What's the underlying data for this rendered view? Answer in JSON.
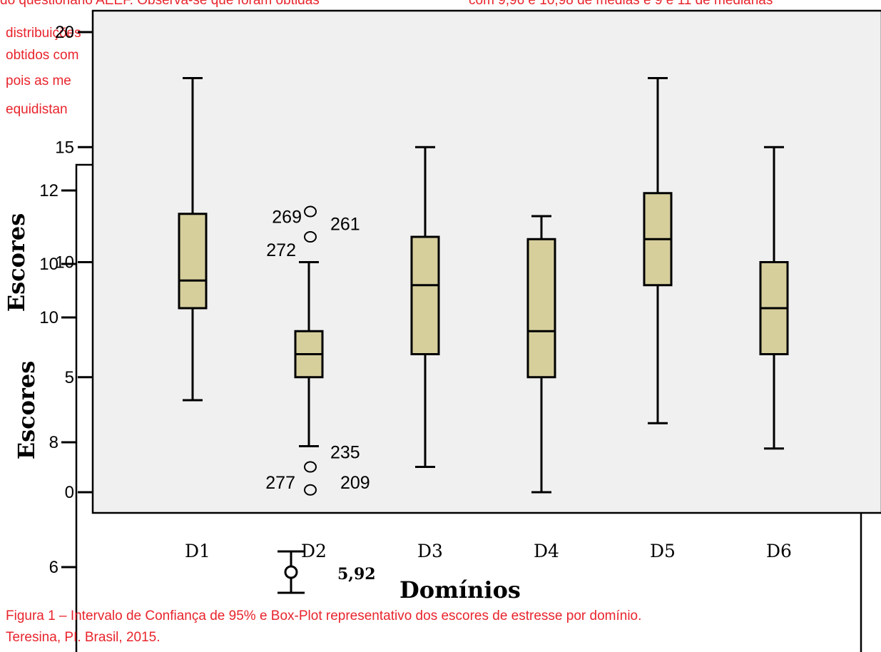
{
  "body_text": {
    "line0_left": "do questionário AEEF. Observa-se que foram obtidas",
    "line0_right": "com 9,96 e 10,98 de médias e 9 e 11 de medianas",
    "line1": "distribuições",
    "line2": "obtidos com",
    "line3": "pois as me",
    "line4": "equidistan"
  },
  "caption": {
    "line1": "Figura 1 – Intervalo de Confiança de 95% e Box-Plot representativo dos escores de estresse por domínio.",
    "line2": "Teresina, PI. Brasil, 2015."
  },
  "colors": {
    "text_red": "#e8242c",
    "box_fill": "#d6cf9c",
    "plot_bg": "#f0f0f0"
  },
  "chart_data": [
    {
      "type": "box",
      "ylabel": "Escores",
      "xlabel": "Domínios",
      "ylim": [
        0,
        20
      ],
      "y_ticks": [
        "0",
        "5",
        "10",
        "15",
        "20"
      ],
      "categories": [
        "D1",
        "D2",
        "D3",
        "D4",
        "D5",
        "D6"
      ],
      "boxes": [
        {
          "name": "D1",
          "whisker_low": 4,
          "q1": 8,
          "median": 9.2,
          "q3": 12.1,
          "whisker_high": 18
        },
        {
          "name": "D2",
          "whisker_low": 2,
          "q1": 5,
          "median": 6,
          "q3": 7,
          "whisker_high": 10
        },
        {
          "name": "D3",
          "whisker_low": 1.1,
          "q1": 6,
          "median": 9,
          "q3": 11.1,
          "whisker_high": 15
        },
        {
          "name": "D4",
          "whisker_low": 0,
          "q1": 5,
          "median": 7,
          "q3": 11,
          "whisker_high": 12
        },
        {
          "name": "D5",
          "whisker_low": 3,
          "q1": 9,
          "median": 11,
          "q3": 13,
          "whisker_high": 18
        },
        {
          "name": "D6",
          "whisker_low": 1.9,
          "q1": 6,
          "median": 8,
          "q3": 10,
          "whisker_high": 15
        }
      ],
      "outliers": [
        {
          "category": "D2",
          "value": 12.2,
          "label": "269"
        },
        {
          "category": "D2",
          "value": 12.2,
          "label": "261"
        },
        {
          "category": "D2",
          "value": 11.1,
          "label": "272"
        },
        {
          "category": "D2",
          "value": 1.1,
          "label": "235"
        },
        {
          "category": "D2",
          "value": 0.1,
          "label": "277"
        },
        {
          "category": "D2",
          "value": 0.1,
          "label": "209"
        }
      ]
    },
    {
      "type": "errorbar",
      "ylabel": "Escores",
      "y_ticks": [
        "12",
        "10",
        "10",
        "8",
        "6"
      ],
      "points": [
        {
          "category": "D2",
          "value": 5.92,
          "label": "5,92"
        }
      ]
    }
  ]
}
